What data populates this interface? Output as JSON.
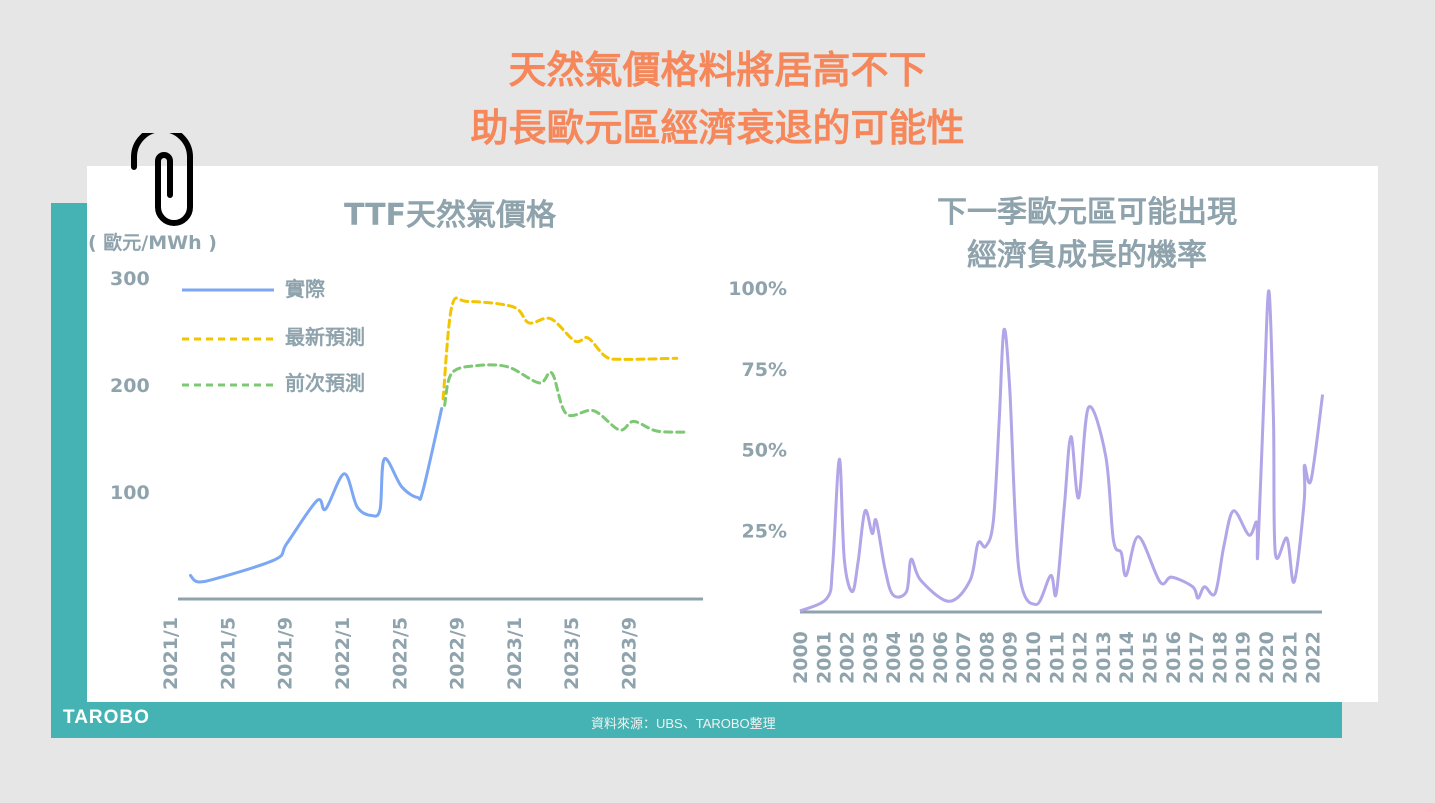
{
  "title": {
    "line1": "天然氣價格料將居高不下",
    "line2": "助長歐元區經濟衰退的可能性"
  },
  "footer": {
    "logo": "TAROBO",
    "source": "資料來源：UBS、TAROBO整理"
  },
  "colors": {
    "title": "#f5875a",
    "teal": "#45b3b3",
    "axis_text": "#8fa3ad",
    "actual": "#7ba7f4",
    "latest": "#f2c500",
    "previous": "#7cc873",
    "probability": "#b2a5e8"
  },
  "icons": {
    "clip": "paperclip-icon"
  },
  "chart_data": [
    {
      "type": "line",
      "title": "TTF天然氣價格",
      "ylabel": "( 歐元/MWh )",
      "ylim": [
        0,
        300
      ],
      "yticks": [
        "100",
        "200",
        "300"
      ],
      "xticks": [
        "2021/1",
        "2021/5",
        "2021/9",
        "2022/1",
        "2022/5",
        "2022/9",
        "2023/1",
        "2023/5",
        "2023/9"
      ],
      "legend": "top-left",
      "grid": false,
      "series": [
        {
          "name": "實際",
          "style": "solid",
          "points": [
            [
              "2021-02-18",
              22
            ],
            [
              "2021-03-04",
              16
            ],
            [
              "2021-04-19",
              20
            ],
            [
              "2021-08-16",
              37
            ],
            [
              "2021-09-10",
              52
            ],
            [
              "2021-11-13",
              92
            ],
            [
              "2021-12-01",
              84
            ],
            [
              "2022-01-10",
              117
            ],
            [
              "2022-02-07",
              86
            ],
            [
              "2022-03-07",
              78
            ],
            [
              "2022-03-25",
              84
            ],
            [
              "2022-04-04",
              131
            ],
            [
              "2022-05-10",
              105
            ],
            [
              "2022-06-13",
              95
            ],
            [
              "2022-06-25",
              102
            ],
            [
              "2022-08-04",
              178
            ]
          ]
        },
        {
          "name": "最新預測",
          "style": "dashed",
          "points": [
            [
              "2022-08-07",
              187
            ],
            [
              "2022-08-25",
              273
            ],
            [
              "2022-09-28",
              278
            ],
            [
              "2023-01-04",
              273
            ],
            [
              "2023-02-07",
              258
            ],
            [
              "2023-03-22",
              262
            ],
            [
              "2023-05-13",
              241
            ],
            [
              "2023-06-10",
              244
            ],
            [
              "2023-07-16",
              227
            ],
            [
              "2023-08-19",
              224
            ],
            [
              "2023-12-16",
              225
            ]
          ]
        },
        {
          "name": "前次預測",
          "style": "dashed",
          "points": [
            [
              "2022-08-10",
              181
            ],
            [
              "2022-08-25",
              211
            ],
            [
              "2022-10-16",
              218
            ],
            [
              "2022-12-22",
              217
            ],
            [
              "2023-02-28",
              202
            ],
            [
              "2023-03-25",
              211
            ],
            [
              "2023-04-25",
              173
            ],
            [
              "2023-06-22",
              176
            ],
            [
              "2023-08-16",
              158
            ],
            [
              "2023-09-16",
              166
            ],
            [
              "2023-11-04",
              157
            ],
            [
              "2024-01-07",
              156
            ]
          ]
        }
      ]
    },
    {
      "type": "line",
      "title": "下一季歐元區可能出現",
      "title2": "經濟負成長的機率",
      "ylim": [
        0,
        100
      ],
      "yticks": [
        "25%",
        "50%",
        "75%",
        "100%"
      ],
      "xticks": [
        "2000",
        "2001",
        "2002",
        "2003",
        "2004",
        "2005",
        "2006",
        "2007",
        "2008",
        "2009",
        "2010",
        "2011",
        "2012",
        "2013",
        "2014",
        "2015",
        "2016",
        "2017",
        "2018",
        "2019",
        "2020",
        "2021",
        "2022"
      ],
      "grid": false,
      "series": [
        {
          "points": [
            [
              2000.0,
              0
            ],
            [
              2001.16,
              4
            ],
            [
              2001.4,
              14
            ],
            [
              2001.69,
              47
            ],
            [
              2001.9,
              16
            ],
            [
              2002.24,
              6
            ],
            [
              2002.49,
              15
            ],
            [
              2002.79,
              31
            ],
            [
              2003.1,
              24
            ],
            [
              2003.27,
              28
            ],
            [
              2003.65,
              13
            ],
            [
              2003.99,
              5
            ],
            [
              2004.57,
              6
            ],
            [
              2004.77,
              16
            ],
            [
              2005.18,
              9.5
            ],
            [
              2006.4,
              3
            ],
            [
              2007.3,
              9.5
            ],
            [
              2007.64,
              21
            ],
            [
              2007.97,
              20
            ],
            [
              2008.3,
              28
            ],
            [
              2008.55,
              59
            ],
            [
              2008.75,
              87
            ],
            [
              2009.0,
              69
            ],
            [
              2009.39,
              13
            ],
            [
              2010.13,
              2
            ],
            [
              2010.76,
              11
            ],
            [
              2011.0,
              5.5
            ],
            [
              2011.35,
              33
            ],
            [
              2011.63,
              54
            ],
            [
              2011.96,
              35
            ],
            [
              2012.38,
              63
            ],
            [
              2013.12,
              48
            ],
            [
              2013.45,
              22
            ],
            [
              2013.79,
              18
            ],
            [
              2014.0,
              11
            ],
            [
              2014.53,
              23
            ],
            [
              2015.45,
              9
            ],
            [
              2015.95,
              10.5
            ],
            [
              2016.86,
              7.5
            ],
            [
              2017.08,
              4
            ],
            [
              2017.36,
              7.5
            ],
            [
              2017.82,
              5.5
            ],
            [
              2018.19,
              20
            ],
            [
              2018.6,
              31
            ],
            [
              2019.27,
              23.5
            ],
            [
              2019.6,
              27.5
            ],
            [
              2019.65,
              18
            ],
            [
              2019.93,
              70
            ],
            [
              2020.13,
              99
            ],
            [
              2020.32,
              59
            ],
            [
              2020.4,
              18
            ],
            [
              2020.9,
              22.5
            ],
            [
              2021.21,
              9
            ],
            [
              2021.64,
              34
            ],
            [
              2021.65,
              45
            ],
            [
              2021.93,
              40.5
            ],
            [
              2022.43,
              67
            ]
          ]
        }
      ]
    }
  ]
}
